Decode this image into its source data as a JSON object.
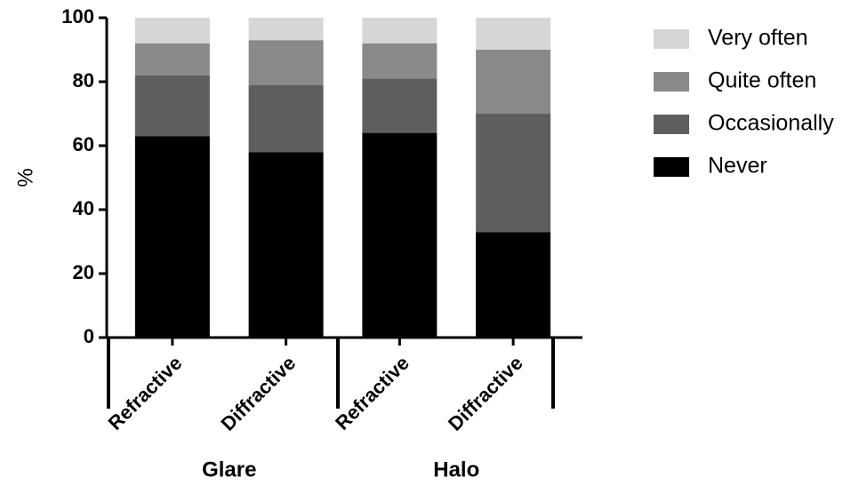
{
  "chart_data": {
    "type": "stacked_bar",
    "ylabel": "%",
    "categories": [
      "Refractive",
      "Diffractive",
      "Refractive",
      "Diffractive"
    ],
    "groups": [
      {
        "name": "Glare",
        "categories": [
          0,
          1
        ]
      },
      {
        "name": "Halo",
        "categories": [
          2,
          3
        ]
      }
    ],
    "series": [
      {
        "name": "Never",
        "color": "#000000",
        "values": [
          63,
          58,
          64,
          33
        ]
      },
      {
        "name": "Occasionally",
        "color": "#5e5e5e",
        "values": [
          19,
          21,
          17,
          37
        ]
      },
      {
        "name": "Quite often",
        "color": "#898989",
        "values": [
          10,
          14,
          11,
          20
        ]
      },
      {
        "name": "Very often",
        "color": "#d6d6d6",
        "values": [
          8,
          7,
          8,
          10
        ]
      }
    ],
    "ylim": [
      0,
      100
    ],
    "yticks": [
      0,
      20,
      40,
      60,
      80,
      100
    ],
    "legend": "right"
  }
}
